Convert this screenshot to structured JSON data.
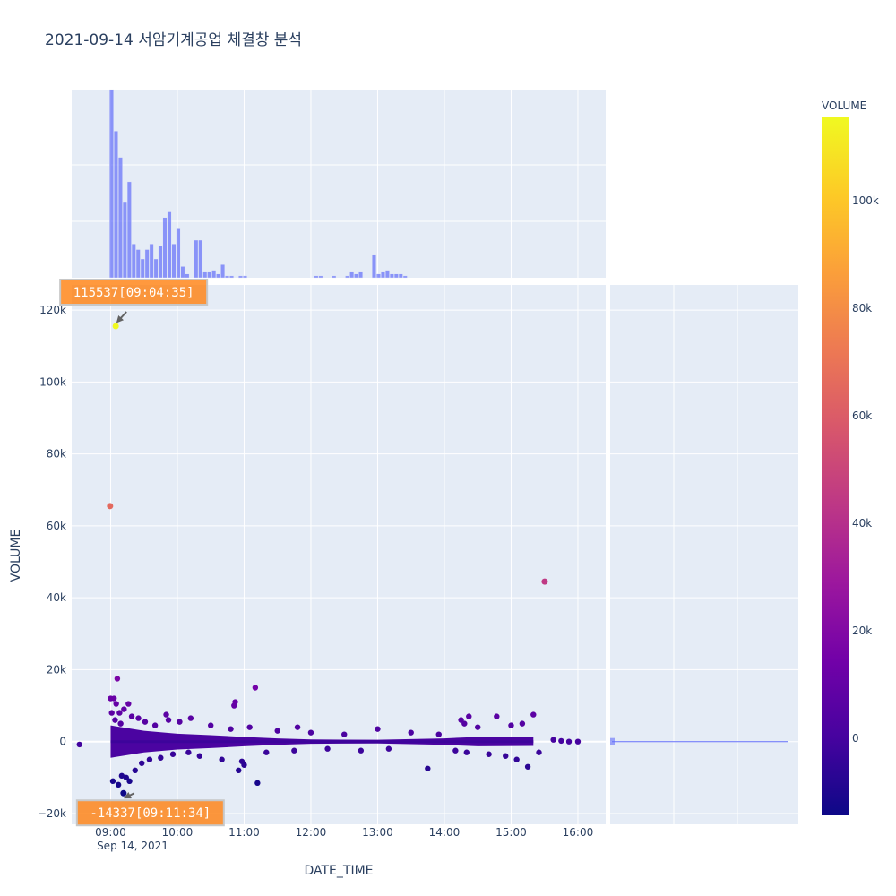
{
  "chart_data": {
    "type": "scatter",
    "title": "2021-09-14 서암기계공업 체결창 분석",
    "xlabel": "DATE_TIME",
    "ylabel": "VOLUME",
    "colorbar_title": "VOLUME",
    "x_range": [
      "2021-09-14 08:25",
      "2021-09-14 16:25"
    ],
    "y_range": [
      -23000,
      127000
    ],
    "x_ticks": [
      {
        "t": "09:00",
        "label": "09:00"
      },
      {
        "t": "10:00",
        "label": "10:00"
      },
      {
        "t": "11:00",
        "label": "11:00"
      },
      {
        "t": "12:00",
        "label": "12:00"
      },
      {
        "t": "13:00",
        "label": "13:00"
      },
      {
        "t": "14:00",
        "label": "14:00"
      },
      {
        "t": "15:00",
        "label": "15:00"
      },
      {
        "t": "16:00",
        "label": "16:00"
      }
    ],
    "x_date_label": "Sep 14, 2021",
    "y_ticks": [
      {
        "v": -20000,
        "label": "−20k"
      },
      {
        "v": 0,
        "label": "0"
      },
      {
        "v": 20000,
        "label": "20k"
      },
      {
        "v": 40000,
        "label": "40k"
      },
      {
        "v": 60000,
        "label": "60k"
      },
      {
        "v": 80000,
        "label": "80k"
      },
      {
        "v": 100000,
        "label": "100k"
      },
      {
        "v": 120000,
        "label": "120k"
      }
    ],
    "colorbar_ticks": [
      {
        "v": 0,
        "label": "0"
      },
      {
        "v": 20000,
        "label": "20k"
      },
      {
        "v": 40000,
        "label": "40k"
      },
      {
        "v": 60000,
        "label": "60k"
      },
      {
        "v": 80000,
        "label": "80k"
      },
      {
        "v": 100000,
        "label": "100k"
      }
    ],
    "color_range": [
      -14337,
      115537
    ],
    "grid": true,
    "legend": "none",
    "highlight_points": [
      {
        "time": "09:04:35",
        "value": 115537
      },
      {
        "time": "08:59:30",
        "value": 65500
      },
      {
        "time": "15:30:10",
        "value": 44500
      },
      {
        "time": "09:11:34",
        "value": -14337
      }
    ],
    "sample_points": [
      {
        "time": "08:32",
        "value": -800
      },
      {
        "time": "09:00",
        "value": 12000
      },
      {
        "time": "09:01",
        "value": 8000
      },
      {
        "time": "09:02",
        "value": -11000
      },
      {
        "time": "09:03",
        "value": 12000
      },
      {
        "time": "09:04",
        "value": 6000
      },
      {
        "time": "09:05",
        "value": 10500
      },
      {
        "time": "09:06",
        "value": 17500
      },
      {
        "time": "09:07",
        "value": -12000
      },
      {
        "time": "09:08",
        "value": 8000
      },
      {
        "time": "09:09",
        "value": 5000
      },
      {
        "time": "09:10",
        "value": -9500
      },
      {
        "time": "09:12",
        "value": 9000
      },
      {
        "time": "09:14",
        "value": -10000
      },
      {
        "time": "09:16",
        "value": 10500
      },
      {
        "time": "09:17",
        "value": -11000
      },
      {
        "time": "09:19",
        "value": 7000
      },
      {
        "time": "09:22",
        "value": -8000
      },
      {
        "time": "09:25",
        "value": 6500
      },
      {
        "time": "09:28",
        "value": -6000
      },
      {
        "time": "09:31",
        "value": 5500
      },
      {
        "time": "09:35",
        "value": -5000
      },
      {
        "time": "09:40",
        "value": 4500
      },
      {
        "time": "09:45",
        "value": -4500
      },
      {
        "time": "09:50",
        "value": 7500
      },
      {
        "time": "09:52",
        "value": 6000
      },
      {
        "time": "09:56",
        "value": -3500
      },
      {
        "time": "10:02",
        "value": 5500
      },
      {
        "time": "10:10",
        "value": -3000
      },
      {
        "time": "10:12",
        "value": 6500
      },
      {
        "time": "10:20",
        "value": -4000
      },
      {
        "time": "10:30",
        "value": 4500
      },
      {
        "time": "10:40",
        "value": -5000
      },
      {
        "time": "10:48",
        "value": 3500
      },
      {
        "time": "10:51",
        "value": 10000
      },
      {
        "time": "10:52",
        "value": 11000
      },
      {
        "time": "10:55",
        "value": -8000
      },
      {
        "time": "10:58",
        "value": -5500
      },
      {
        "time": "11:00",
        "value": -6500
      },
      {
        "time": "11:05",
        "value": 4000
      },
      {
        "time": "11:10",
        "value": 15000
      },
      {
        "time": "11:12",
        "value": -11500
      },
      {
        "time": "11:20",
        "value": -3000
      },
      {
        "time": "11:30",
        "value": 3000
      },
      {
        "time": "11:45",
        "value": -2500
      },
      {
        "time": "11:48",
        "value": 4000
      },
      {
        "time": "12:00",
        "value": 2500
      },
      {
        "time": "12:15",
        "value": -2000
      },
      {
        "time": "12:30",
        "value": 2000
      },
      {
        "time": "12:45",
        "value": -2500
      },
      {
        "time": "13:00",
        "value": 3500
      },
      {
        "time": "13:10",
        "value": -2000
      },
      {
        "time": "13:30",
        "value": 2500
      },
      {
        "time": "13:45",
        "value": -7500
      },
      {
        "time": "13:55",
        "value": 2000
      },
      {
        "time": "14:10",
        "value": -2500
      },
      {
        "time": "14:15",
        "value": 6000
      },
      {
        "time": "14:18",
        "value": 5000
      },
      {
        "time": "14:20",
        "value": -3000
      },
      {
        "time": "14:22",
        "value": 7000
      },
      {
        "time": "14:30",
        "value": 4000
      },
      {
        "time": "14:40",
        "value": -3500
      },
      {
        "time": "14:47",
        "value": 7000
      },
      {
        "time": "14:55",
        "value": -4000
      },
      {
        "time": "15:00",
        "value": 4500
      },
      {
        "time": "15:05",
        "value": -5000
      },
      {
        "time": "15:10",
        "value": 5000
      },
      {
        "time": "15:15",
        "value": -7000
      },
      {
        "time": "15:20",
        "value": 7500
      },
      {
        "time": "15:25",
        "value": -3000
      },
      {
        "time": "15:38",
        "value": 500
      },
      {
        "time": "15:45",
        "value": 200
      },
      {
        "time": "15:52",
        "value": 0
      },
      {
        "time": "16:00",
        "value": 0
      }
    ],
    "band": [
      {
        "time": "09:00",
        "value": 4500
      },
      {
        "time": "09:30",
        "value": 3000
      },
      {
        "time": "10:00",
        "value": 2200
      },
      {
        "time": "10:30",
        "value": 1800
      },
      {
        "time": "11:00",
        "value": 1300
      },
      {
        "time": "11:30",
        "value": 900
      },
      {
        "time": "12:00",
        "value": 600
      },
      {
        "time": "13:00",
        "value": 500
      },
      {
        "time": "14:00",
        "value": 900
      },
      {
        "time": "14:30",
        "value": 1300
      },
      {
        "time": "15:20",
        "value": 1200
      }
    ],
    "histogram": {
      "bin_start": "08:55",
      "bin_width_minutes": 4,
      "relative_counts": [
        0.0,
        1.0,
        0.78,
        0.64,
        0.4,
        0.51,
        0.18,
        0.15,
        0.1,
        0.15,
        0.18,
        0.1,
        0.17,
        0.32,
        0.35,
        0.18,
        0.26,
        0.06,
        0.02,
        0.0,
        0.2,
        0.2,
        0.03,
        0.03,
        0.04,
        0.02,
        0.07,
        0.01,
        0.01,
        0.0,
        0.01,
        0.01,
        0.0,
        0.0,
        0.0,
        0.0,
        0.0,
        0.0,
        0.0,
        0.0,
        0.0,
        0.0,
        0.0,
        0.0,
        0.0,
        0.0,
        0.0,
        0.01,
        0.01,
        0.0,
        0.0,
        0.01,
        0.0,
        0.0,
        0.01,
        0.03,
        0.02,
        0.03,
        0.0,
        0.0,
        0.12,
        0.02,
        0.03,
        0.04,
        0.02,
        0.02,
        0.02,
        0.01
      ]
    },
    "annotations": [
      {
        "text": "115537[09:04:35]",
        "time": "09:04:35",
        "value": 115537
      },
      {
        "text": "-14337[09:11:34]",
        "time": "09:11:34",
        "value": -14337
      }
    ]
  }
}
